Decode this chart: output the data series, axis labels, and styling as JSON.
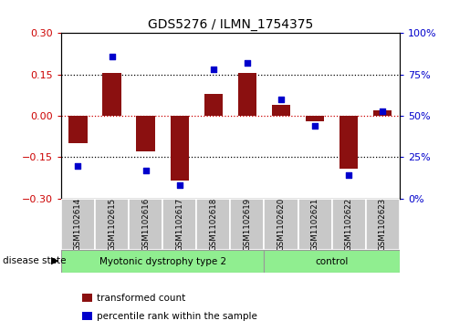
{
  "title": "GDS5276 / ILMN_1754375",
  "samples": [
    "GSM1102614",
    "GSM1102615",
    "GSM1102616",
    "GSM1102617",
    "GSM1102618",
    "GSM1102619",
    "GSM1102620",
    "GSM1102621",
    "GSM1102622",
    "GSM1102623"
  ],
  "transformed_count": [
    -0.1,
    0.155,
    -0.13,
    -0.235,
    0.08,
    0.155,
    0.04,
    -0.02,
    -0.19,
    0.02
  ],
  "percentile_rank": [
    20,
    86,
    17,
    8,
    78,
    82,
    60,
    44,
    14,
    53
  ],
  "group_boundary": 6,
  "group1_label": "Myotonic dystrophy type 2",
  "group2_label": "control",
  "group_color": "#90EE90",
  "bar_color": "#8B1010",
  "dot_color": "#0000CC",
  "left_ylim": [
    -0.3,
    0.3
  ],
  "right_ylim": [
    0,
    100
  ],
  "left_yticks": [
    -0.3,
    -0.15,
    0,
    0.15,
    0.3
  ],
  "right_yticks": [
    0,
    25,
    50,
    75,
    100
  ],
  "right_yticklabels": [
    "0%",
    "25%",
    "50%",
    "75%",
    "100%"
  ],
  "hlines_dotted": [
    -0.15,
    0.15
  ],
  "hline_0_color": "#CC0000",
  "left_tick_color": "#CC0000",
  "right_tick_color": "#0000CC",
  "disease_state_label": "disease state",
  "legend_bar_label": "transformed count",
  "legend_dot_label": "percentile rank within the sample",
  "sample_box_color": "#C8C8C8",
  "n_samples": 10
}
